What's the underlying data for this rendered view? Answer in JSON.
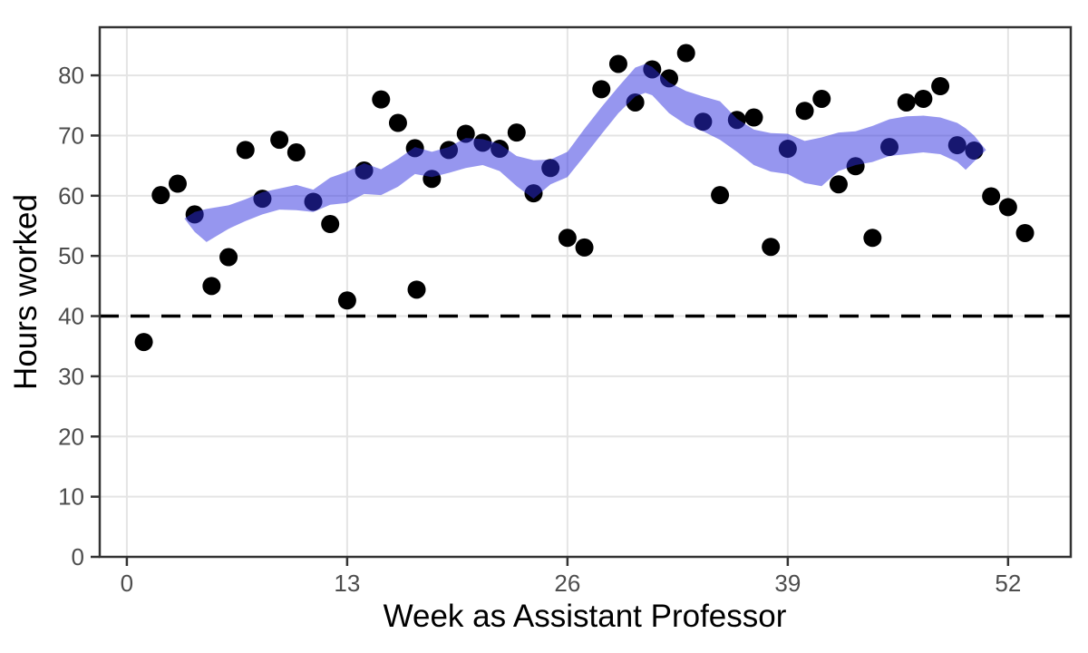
{
  "chart_data": {
    "type": "scatter",
    "title": "",
    "xlabel": "Week as Assistant Professor",
    "ylabel": "Hours worked",
    "x_ticks": [
      0,
      13,
      26,
      39,
      52
    ],
    "y_ticks": [
      0,
      10,
      20,
      30,
      40,
      50,
      60,
      70,
      80
    ],
    "xlim": [
      -1.6,
      55.7
    ],
    "ylim": [
      0,
      88
    ],
    "grid": true,
    "legend": "none",
    "reference_line": {
      "y": 40,
      "style": "dashed",
      "color": "#000000"
    },
    "points": {
      "color": "#000000",
      "radius": 10,
      "x": [
        1,
        2,
        3,
        4,
        5,
        6,
        7,
        8,
        9,
        10,
        11,
        12,
        13,
        14,
        15,
        16,
        17,
        17.1,
        18,
        19,
        20,
        21,
        22,
        23,
        24,
        25,
        26,
        27,
        28,
        29,
        30,
        31,
        32,
        33,
        34,
        35,
        36,
        37,
        38,
        39,
        40,
        41,
        42,
        43,
        44,
        45,
        46,
        47,
        48,
        49,
        50,
        51,
        52,
        53
      ],
      "y": [
        35.7,
        60.1,
        62.0,
        56.9,
        45.0,
        49.8,
        67.6,
        59.5,
        69.3,
        67.2,
        59.0,
        55.3,
        42.6,
        64.2,
        76.0,
        72.1,
        67.9,
        44.4,
        62.8,
        67.6,
        70.3,
        68.8,
        67.8,
        70.5,
        60.4,
        64.6,
        53.0,
        51.4,
        77.7,
        81.9,
        75.5,
        81.0,
        79.5,
        83.7,
        72.3,
        60.1,
        72.6,
        73.0,
        51.5,
        67.8,
        74.1,
        76.1,
        61.9,
        64.9,
        53.0,
        68.1,
        75.5,
        76.1,
        78.2,
        68.4,
        67.5,
        59.9,
        58.1,
        53.8
      ]
    },
    "ribbon": {
      "label": "rolling-average-band",
      "fill": "#2e2ee0",
      "opacity": 0.5,
      "x": [
        3.4,
        4,
        4.7,
        6,
        7,
        8,
        9,
        10,
        11,
        12,
        13,
        14,
        15,
        16,
        17,
        18,
        19,
        20,
        21,
        22,
        23,
        24,
        25,
        26,
        27,
        28,
        29,
        30,
        30.6,
        31,
        32,
        33,
        34,
        35,
        36,
        37,
        38,
        39,
        40,
        41,
        42,
        43,
        44,
        45,
        46,
        47,
        48,
        49,
        49.5,
        50,
        50.7
      ],
      "upper": [
        56.2,
        57.3,
        57.8,
        58.4,
        59.4,
        60.6,
        61.2,
        61.8,
        61.0,
        63.0,
        64.0,
        65.4,
        64.4,
        66.1,
        68.1,
        67.3,
        68.1,
        69.6,
        69.4,
        68.6,
        66.6,
        65.9,
        66.0,
        67.3,
        71.1,
        74.7,
        78.1,
        81.3,
        81.9,
        81.4,
        78.8,
        77.4,
        76.5,
        75.7,
        72.8,
        71.0,
        70.4,
        70.3,
        69.1,
        69.7,
        70.5,
        70.7,
        71.6,
        72.7,
        73.2,
        73.3,
        73.0,
        72.1,
        71.2,
        70.0,
        67.6
      ],
      "lower": [
        56.2,
        54.0,
        52.3,
        54.5,
        55.8,
        56.9,
        57.7,
        57.6,
        57.3,
        58.5,
        58.8,
        60.3,
        60.1,
        61.5,
        63.6,
        63.1,
        63.8,
        64.6,
        65.1,
        64.1,
        61.6,
        59.5,
        61.9,
        63.1,
        66.6,
        70.2,
        73.7,
        76.5,
        77.1,
        76.7,
        73.7,
        71.8,
        70.7,
        69.3,
        67.3,
        65.1,
        64.0,
        63.6,
        62.1,
        61.6,
        64.1,
        65.1,
        65.6,
        66.6,
        66.9,
        67.2,
        66.9,
        65.6,
        64.3,
        65.7,
        67.6
      ]
    },
    "colors": {
      "point": "#000000",
      "ribbon": "#2e2ee0",
      "gridline": "#e4e4e4",
      "panel_border": "#333333",
      "tick_label": "#4d4d4d",
      "axis_title": "#000000",
      "background": "#ffffff"
    }
  }
}
